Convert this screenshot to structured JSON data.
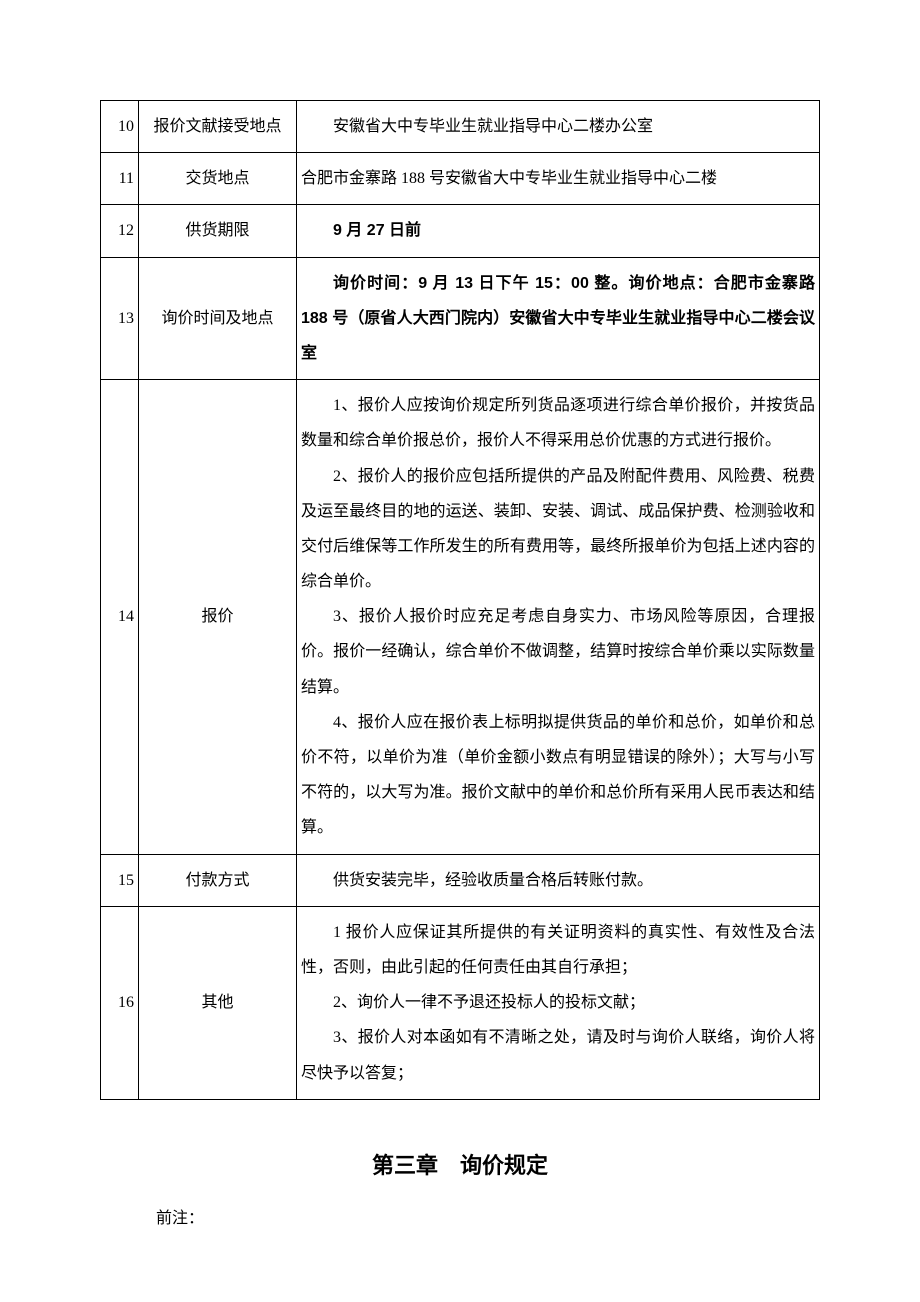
{
  "table": {
    "rows": [
      {
        "num": "10",
        "label": "报价文献接受地点",
        "paras": [
          {
            "text": "安徽省大中专毕业生就业指导中心二楼办公室",
            "indent": true,
            "bold": false
          }
        ]
      },
      {
        "num": "11",
        "label": "交货地点",
        "paras": [
          {
            "text": "合肥市金寨路 188 号安徽省大中专毕业生就业指导中心二楼",
            "indent": false,
            "bold": false
          }
        ]
      },
      {
        "num": "12",
        "label": "供货期限",
        "paras": [
          {
            "text": "9 月 27 日前",
            "indent": true,
            "bold": true
          }
        ]
      },
      {
        "num": "13",
        "label": "询价时间及地点",
        "paras": [
          {
            "text": "询价时间：9 月 13 日下午 15：00 整。询价地点：合肥市金寨路 188 号（原省人大西门院内）安徽省大中专毕业生就业指导中心二楼会议室",
            "indent": true,
            "bold": true
          }
        ]
      },
      {
        "num": "14",
        "label": "报价",
        "paras": [
          {
            "text": "1、报价人应按询价规定所列货品逐项进行综合单价报价，并按货品数量和综合单价报总价，报价人不得采用总价优惠的方式进行报价。",
            "indent": true,
            "bold": false
          },
          {
            "text": "2、报价人的报价应包括所提供的产品及附配件费用、风险费、税费及运至最终目的地的运送、装卸、安装、调试、成品保护费、检测验收和交付后维保等工作所发生的所有费用等，最终所报单价为包括上述内容的综合单价。",
            "indent": true,
            "bold": false
          },
          {
            "text": "3、报价人报价时应充足考虑自身实力、市场风险等原因，合理报价。报价一经确认，综合单价不做调整，结算时按综合单价乘以实际数量结算。",
            "indent": true,
            "bold": false
          },
          {
            "text": "4、报价人应在报价表上标明拟提供货品的单价和总价，如单价和总价不符，以单价为准（单价金额小数点有明显错误的除外）；大写与小写不符的，以大写为准。报价文献中的单价和总价所有采用人民币表达和结算。",
            "indent": true,
            "bold": false
          }
        ]
      },
      {
        "num": "15",
        "label": "付款方式",
        "paras": [
          {
            "text": "供货安装完毕，经验收质量合格后转账付款。",
            "indent": true,
            "bold": false
          }
        ]
      },
      {
        "num": "16",
        "label": "其他",
        "paras": [
          {
            "text": "1 报价人应保证其所提供的有关证明资料的真实性、有效性及合法性，否则，由此引起的任何责任由其自行承担；",
            "indent": true,
            "bold": false
          },
          {
            "text": "2、询价人一律不予退还投标人的投标文献；",
            "indent": true,
            "bold": false
          },
          {
            "text": "3、报价人对本函如有不清晰之处，请及时与询价人联络，询价人将尽快予以答复；",
            "indent": true,
            "bold": false
          }
        ]
      }
    ]
  },
  "chapter_title": "第三章　询价规定",
  "prenote": "前注："
}
